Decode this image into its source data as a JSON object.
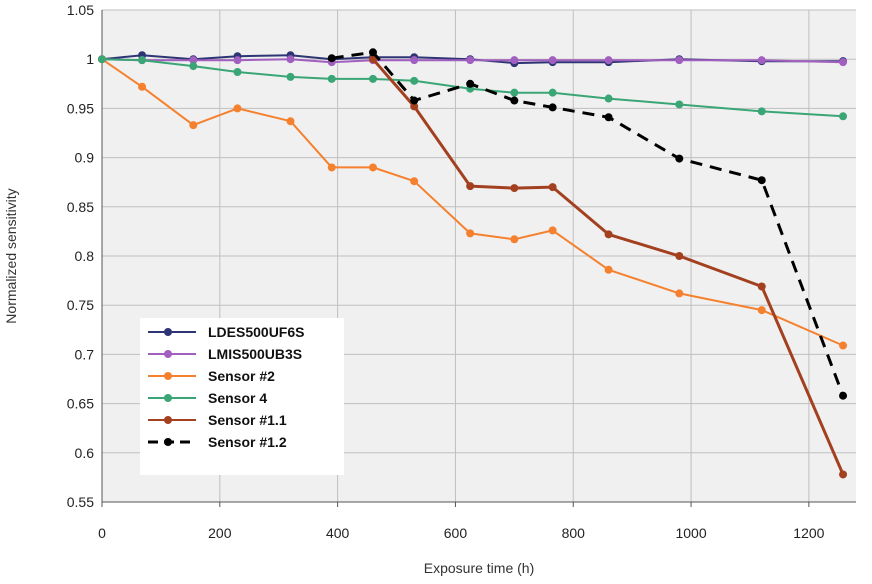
{
  "chart_data": {
    "type": "line",
    "xlabel": "Exposure time (h)",
    "ylabel": "Normalized sensitivity",
    "xlim": [
      0,
      1280
    ],
    "ylim": [
      0.55,
      1.05
    ],
    "xticks": [
      0,
      200,
      400,
      600,
      800,
      1000,
      1200
    ],
    "yticks": [
      0.55,
      0.6,
      0.65,
      0.7,
      0.75,
      0.8,
      0.85,
      0.9,
      0.95,
      1,
      1.05
    ],
    "ytick_labels": [
      "0.55",
      "0.6",
      "0.65",
      "0.7",
      "0.75",
      "0.8",
      "0.85",
      "0.9",
      "0.95",
      "1",
      "1.05"
    ],
    "grid": true,
    "legend_position": "bottom-left",
    "plot_background": "#f0f0f0",
    "series": [
      {
        "name": "LDES500UF6S",
        "color": "#2d3574",
        "dashed": false,
        "x": [
          0,
          68,
          155,
          230,
          320,
          390,
          460,
          530,
          625,
          700,
          765,
          860,
          980,
          1120,
          1258
        ],
        "y": [
          1.0,
          1.004,
          1.0,
          1.003,
          1.004,
          1.0,
          1.002,
          1.002,
          1.0,
          0.996,
          0.997,
          0.997,
          1.0,
          0.998,
          0.998
        ]
      },
      {
        "name": "LMIS500UB3S",
        "color": "#a15fbf",
        "dashed": false,
        "x": [
          0,
          68,
          155,
          230,
          320,
          390,
          460,
          530,
          625,
          700,
          765,
          860,
          980,
          1120,
          1258
        ],
        "y": [
          1.0,
          0.999,
          0.999,
          0.999,
          1.0,
          0.997,
          0.999,
          0.999,
          0.999,
          0.999,
          0.999,
          0.999,
          0.999,
          0.999,
          0.997
        ]
      },
      {
        "name": "Sensor #2",
        "color": "#f5802e",
        "dashed": false,
        "x": [
          0,
          68,
          155,
          230,
          320,
          390,
          460,
          530,
          625,
          700,
          765,
          860,
          980,
          1120,
          1258
        ],
        "y": [
          1.0,
          0.972,
          0.933,
          0.95,
          0.937,
          0.89,
          0.89,
          0.876,
          0.823,
          0.817,
          0.826,
          0.786,
          0.762,
          0.745,
          0.709
        ]
      },
      {
        "name": "Sensor 4",
        "color": "#3aa675",
        "dashed": false,
        "x": [
          0,
          68,
          155,
          230,
          320,
          390,
          460,
          530,
          625,
          700,
          765,
          860,
          980,
          1120,
          1258
        ],
        "y": [
          1.0,
          0.999,
          0.993,
          0.987,
          0.982,
          0.98,
          0.98,
          0.978,
          0.97,
          0.966,
          0.966,
          0.96,
          0.954,
          0.947,
          0.942
        ]
      },
      {
        "name": "Sensor #1.1",
        "color": "#a3401f",
        "dashed": false,
        "x": [
          460,
          530,
          625,
          700,
          765,
          860,
          980,
          1120,
          1258
        ],
        "y": [
          1.0,
          0.952,
          0.871,
          0.869,
          0.87,
          0.822,
          0.8,
          0.769,
          0.578
        ]
      },
      {
        "name": "Sensor #1.2",
        "color": "#000000",
        "dashed": true,
        "x": [
          390,
          460,
          530,
          625,
          700,
          765,
          860,
          980,
          1120,
          1258
        ],
        "y": [
          1.001,
          1.007,
          0.958,
          0.975,
          0.958,
          0.951,
          0.941,
          0.899,
          0.877,
          0.658
        ]
      }
    ]
  }
}
